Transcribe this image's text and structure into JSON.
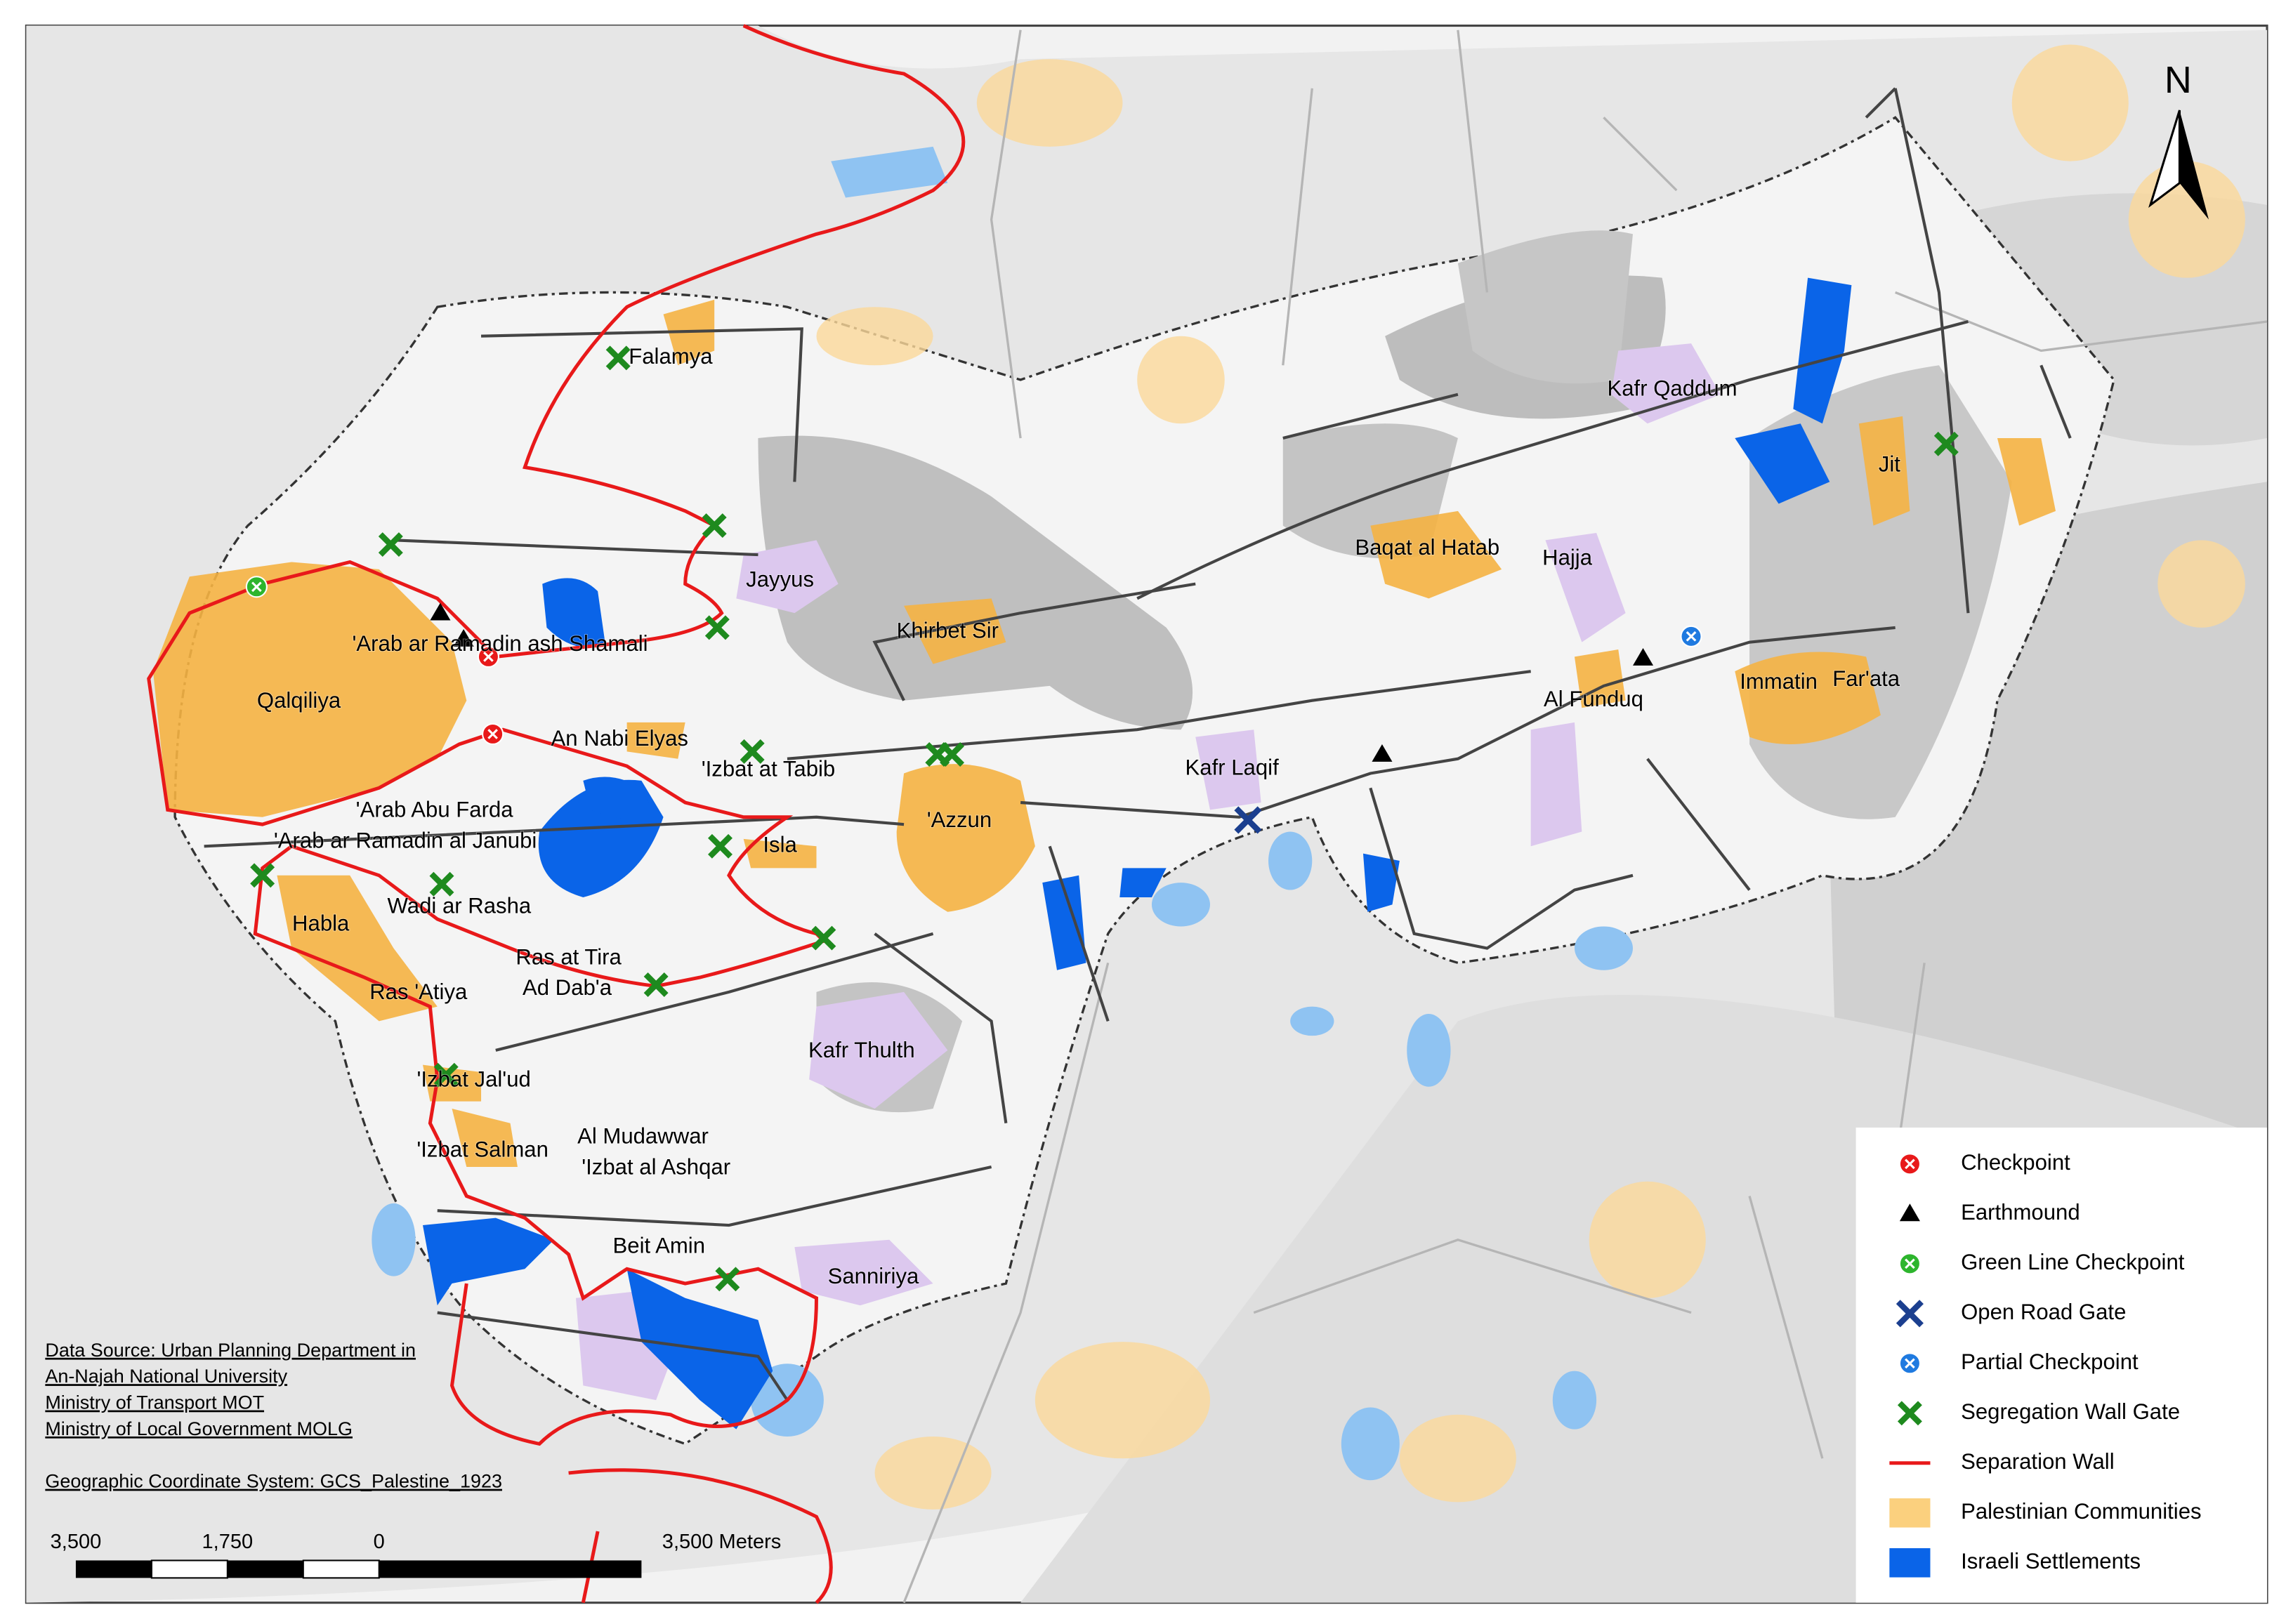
{
  "north": "N",
  "places": [
    "Falamya",
    "Jayyus",
    "Khirbet Sir",
    "'Arab ar Ramadin ash Shamali",
    "Qalqiliya",
    "An Nabi Elyas",
    "'Izbat at Tabib",
    "'Azzun",
    "Kafr Laqif",
    "'Arab Abu Farda",
    "'Arab ar Ramadin al Janubi",
    "Isla",
    "Wadi ar Rasha",
    "Habla",
    "Ras at Tira",
    "Ad Dab'a",
    "Ras 'Atiya",
    "Kafr Thulth",
    "'Izbat Jal'ud",
    "Al Mudawwar",
    "'Izbat Salman",
    "'Izbat al Ashqar",
    "Beit Amin",
    "Sanniriya",
    "Kafr Qaddum",
    "Jit",
    "Baqat al Hatab",
    "Hajja",
    "Al Funduq",
    "Immatin",
    "Far'ata"
  ],
  "legend": [
    "Checkpoint",
    "Earthmound",
    "Green Line Checkpoint",
    "Open Road Gate",
    "Partial Checkpoint",
    "Segregation Wall Gate",
    "Separation Wall",
    "Palestinian Communities",
    "Israeli Settlements"
  ],
  "notes": [
    "Data Source: Urban Planning Department in",
    "An-Najah National University",
    "Ministry of Transport MOT",
    "Ministry of Local Government MOLG",
    "Geographic Coordinate System: GCS_Palestine_1923"
  ],
  "scale": [
    "3,500",
    "1,750",
    "0",
    "3,500 Meters"
  ]
}
